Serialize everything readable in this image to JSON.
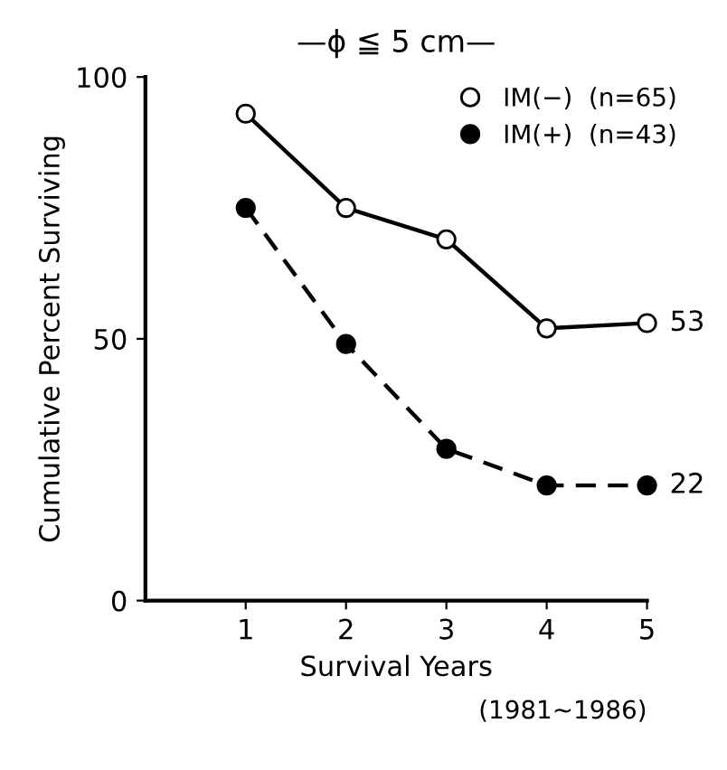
{
  "chart_data": {
    "type": "line",
    "title": "—ϕ ≦ 5 cm—",
    "xlabel": "Survival Years",
    "ylabel": "Cumulative Percent Surviving",
    "x": [
      1,
      2,
      3,
      4,
      5
    ],
    "series": [
      {
        "name": "IM(−)  (n=65)",
        "color": "#000000",
        "values": [
          93,
          75,
          69,
          52,
          53
        ],
        "marker": "circle",
        "line_style": "solid"
      },
      {
        "name": "IM(+)  (n=43)",
        "color": "#000000",
        "values": [
          75,
          49,
          29,
          22,
          22
        ],
        "marker": "circle",
        "line_style": "dashed"
      }
    ],
    "annotations": [
      {
        "text": "53",
        "x": 5,
        "y": 53
      },
      {
        "text": "22",
        "x": 5,
        "y": 22
      },
      "(1981∼1986)"
    ],
    "xlim": [
      0,
      5
    ],
    "xticks": [
      1,
      2,
      3,
      4,
      5
    ],
    "ylim": [
      0,
      100
    ],
    "yticks": [
      0,
      50,
      100
    ],
    "grid": false,
    "legend": "top right"
  }
}
